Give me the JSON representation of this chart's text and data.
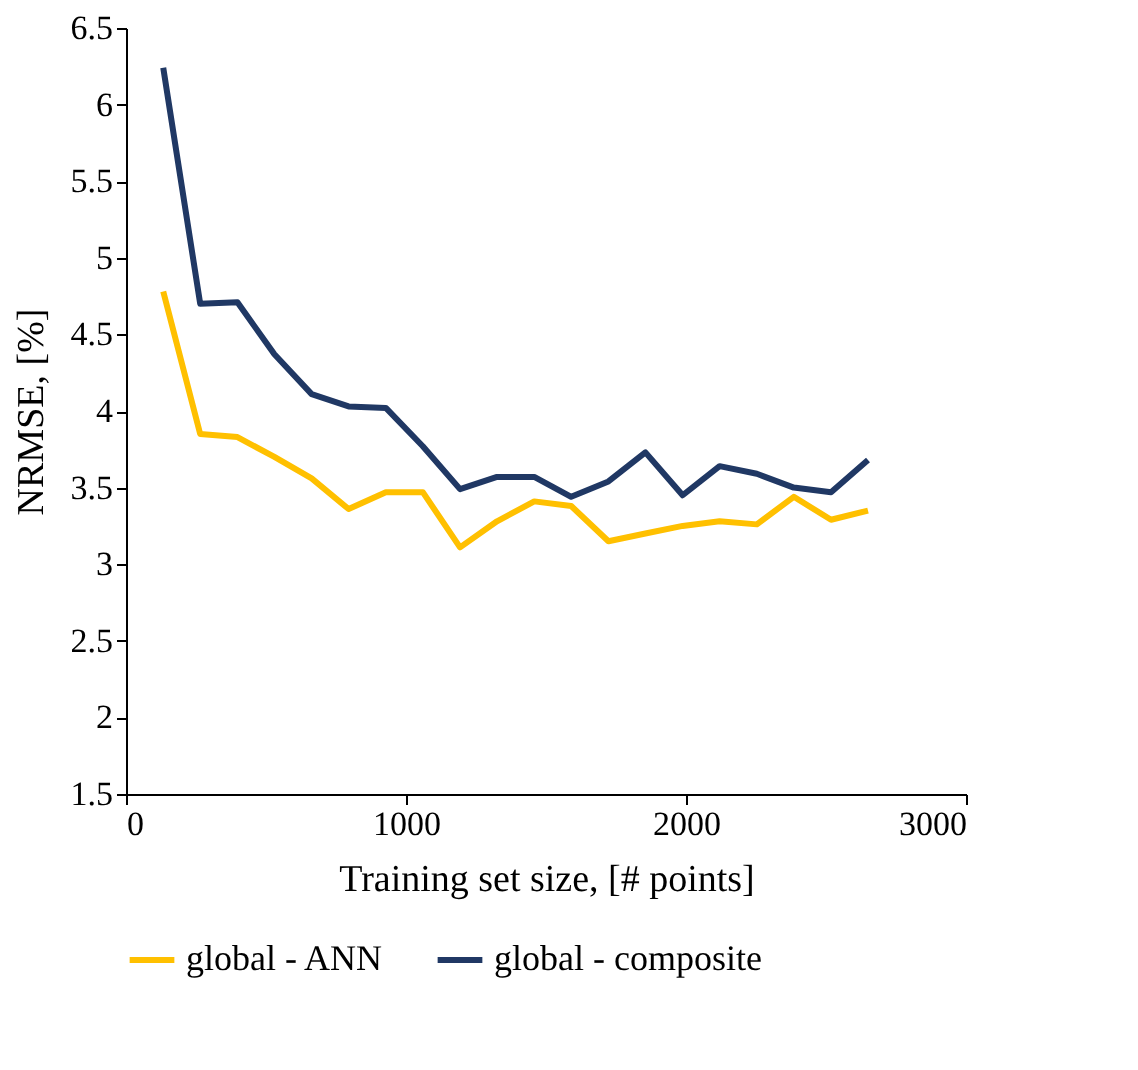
{
  "chart_data": {
    "type": "line",
    "xlabel": "Training set size, [# points]",
    "ylabel": "NRMSE, [%]",
    "x": [
      133,
      265,
      398,
      530,
      663,
      795,
      928,
      1060,
      1193,
      1325,
      1458,
      1590,
      1723,
      1855,
      1988,
      2120,
      2253,
      2385,
      2518,
      2650
    ],
    "series": [
      {
        "name": "global - ANN",
        "color": "#ffc000",
        "values": [
          4.78,
          3.85,
          3.83,
          3.7,
          3.56,
          3.36,
          3.47,
          3.47,
          3.11,
          3.28,
          3.41,
          3.38,
          3.15,
          3.2,
          3.25,
          3.28,
          3.26,
          3.44,
          3.29,
          3.35
        ]
      },
      {
        "name": "global - composite",
        "color": "#203864",
        "values": [
          6.24,
          4.7,
          4.71,
          4.37,
          4.11,
          4.03,
          4.02,
          3.77,
          3.49,
          3.57,
          3.57,
          3.44,
          3.54,
          3.73,
          3.45,
          3.64,
          3.59,
          3.5,
          3.47,
          3.68
        ]
      }
    ],
    "xlim": [
      0,
      3000
    ],
    "xticks": [
      0,
      1000,
      2000,
      3000
    ],
    "ylim": [
      1.5,
      6.5
    ],
    "yticks": [
      1.5,
      2,
      2.5,
      3,
      3.5,
      4,
      4.5,
      5,
      5.5,
      6,
      6.5
    ],
    "grid": false,
    "legend": "bottom",
    "marker": "none",
    "line_style": "solid"
  }
}
